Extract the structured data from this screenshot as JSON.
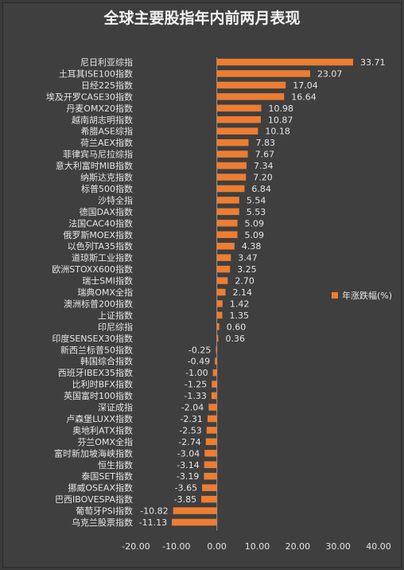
{
  "chart_data": {
    "type": "bar",
    "orientation": "horizontal",
    "title": "全球主要股指年内前两月表现",
    "series": [
      {
        "name": "年涨跌幅(%)",
        "color": "#ed7d31"
      }
    ],
    "legend_position": "right",
    "xlim": [
      -20,
      40
    ],
    "xticks": [
      "-20.00",
      "-10.00",
      "0.00",
      "10.00",
      "20.00",
      "30.00",
      "40.00"
    ],
    "grid": false,
    "categories": [
      "尼日利亚综指",
      "土耳其ISE100指数",
      "日经225指数",
      "埃及开罗CASE30指数",
      "丹麦OMX20指数",
      "越南胡志明指数",
      "希腊ASE综指",
      "荷兰AEX指数",
      "菲律宾马尼拉综指",
      "意大利富时MIB指数",
      "纳斯达克指数",
      "标普500指数",
      "沙特全指",
      "德国DAX指数",
      "法国CAC40指数",
      "俄罗斯MOEX指数",
      "以色列TA35指数",
      "道琼斯工业指数",
      "欧洲STOXX600指数",
      "瑞士SMI指数",
      "瑞典OMX全指",
      "澳洲标普200指数",
      "上证指数",
      "印尼综指",
      "印度SENSEX30指数",
      "新西兰标普50指数",
      "韩国综合指数",
      "西班牙IBEX35指数",
      "比利时BFX指数",
      "英国富时100指数",
      "深证成指",
      "卢森堡LUXX指数",
      "奥地利ATX指数",
      "芬兰OMX全指",
      "富时新加坡海峡指数",
      "恒生指数",
      "泰国SET指数",
      "挪威OSEAX指数",
      "巴西IBOVESPA指数",
      "葡萄牙PSI指数",
      "乌克兰股票指数"
    ],
    "values": [
      33.71,
      23.07,
      17.04,
      16.64,
      10.98,
      10.87,
      10.18,
      7.83,
      7.67,
      7.34,
      7.2,
      6.84,
      5.54,
      5.53,
      5.09,
      5.09,
      4.38,
      3.47,
      3.25,
      2.7,
      2.14,
      1.42,
      1.35,
      0.6,
      0.36,
      -0.25,
      -0.49,
      -1.0,
      -1.25,
      -1.33,
      -2.04,
      -2.31,
      -2.53,
      -2.74,
      -3.04,
      -3.14,
      -3.19,
      -3.65,
      -3.85,
      -10.82,
      -11.13
    ],
    "data_labels": [
      "33.71",
      "23.07",
      "17.04",
      "16.64",
      "10.98",
      "10.87",
      "10.18",
      "7.83",
      "7.67",
      "7.34",
      "7.20",
      "6.84",
      "5.54",
      "5.53",
      "5.09",
      "5.09",
      "4.38",
      "3.47",
      "3.25",
      "2.70",
      "2.14",
      "1.42",
      "1.35",
      "0.60",
      "0.36",
      "-0.25",
      "-0.49",
      "-1.00",
      "-1.25",
      "-1.33",
      "-2.04",
      "-2.31",
      "-2.53",
      "-2.74",
      "-3.04",
      "-3.14",
      "-3.19",
      "-3.65",
      "-3.85",
      "-10.82",
      "-11.13"
    ]
  }
}
